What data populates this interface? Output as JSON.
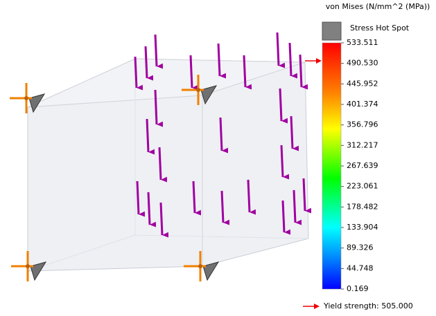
{
  "legend": {
    "title": "von Mises (N/mm^2 (MPa))",
    "hot_spot": "Stress Hot Spot",
    "ticks": [
      "533.511",
      "490.530",
      "445.952",
      "401.374",
      "356.796",
      "312.217",
      "267.639",
      "223.061",
      "178.482",
      "133.904",
      "89.326",
      "44.748",
      "0.169"
    ],
    "yield": "Yield strength: 505.000"
  }
}
